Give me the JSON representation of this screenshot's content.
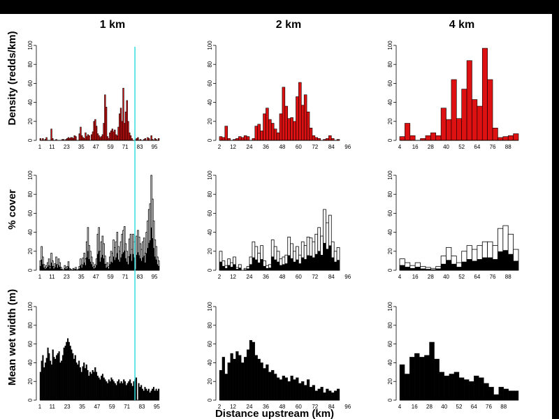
{
  "chart_data": {
    "type": "bar",
    "column_titles": [
      "1 km",
      "2 km",
      "4 km"
    ],
    "row_labels": [
      "Density (redds/km)",
      "% cover",
      "Mean wet width (m)"
    ],
    "xlabel": "Distance upstream (km)",
    "ylim": [
      0,
      100
    ],
    "yticks": [
      0,
      20,
      40,
      60,
      80,
      100
    ],
    "xticks": {
      "1 km": [
        "1",
        "11",
        "23",
        "35",
        "47",
        "59",
        "71",
        "83",
        "95"
      ],
      "2 km": [
        "2",
        "12",
        "24",
        "36",
        "48",
        "60",
        "72",
        "84",
        "96"
      ],
      "4 km": [
        "4",
        "16",
        "28",
        "40",
        "52",
        "64",
        "76",
        "88"
      ]
    },
    "colors": {
      "density": "#dd1111",
      "cover": "#000000",
      "width": "#000000",
      "marker_line": "#33dddd"
    },
    "marker_line_x_km": 79,
    "panels": [
      {
        "row": "density",
        "column": "1 km",
        "x_start": 1,
        "bin_km": 1,
        "values": [
          2,
          0,
          2,
          0,
          1,
          3,
          0,
          0,
          0,
          12,
          2,
          0,
          0,
          1,
          0,
          0,
          0,
          0,
          1,
          1,
          0,
          1,
          2,
          3,
          2,
          3,
          3,
          2,
          5,
          4,
          0,
          0,
          7,
          14,
          5,
          3,
          2,
          8,
          4,
          6,
          5,
          0,
          6,
          9,
          20,
          22,
          15,
          7,
          5,
          3,
          4,
          6,
          18,
          48,
          35,
          4,
          2,
          8,
          10,
          12,
          9,
          11,
          6,
          5,
          14,
          28,
          34,
          20,
          55,
          18,
          30,
          42,
          20,
          8,
          5,
          2,
          0,
          0,
          1,
          2,
          3,
          0,
          1,
          0,
          0,
          1,
          2,
          0,
          3,
          2,
          0,
          5,
          1,
          0,
          2,
          1,
          0,
          2
        ]
      },
      {
        "row": "density",
        "column": "2 km",
        "x_start": 2,
        "bin_km": 2,
        "values": [
          4,
          3,
          15,
          2,
          0,
          1,
          2,
          4,
          3,
          5,
          4,
          0,
          2,
          15,
          17,
          10,
          28,
          34,
          22,
          18,
          12,
          8,
          28,
          56,
          36,
          23,
          24,
          20,
          46,
          61,
          37,
          48,
          30,
          13,
          5,
          3,
          2,
          0,
          1,
          2,
          5,
          2,
          0,
          1
        ]
      },
      {
        "row": "density",
        "column": "4 km",
        "x_start": 4,
        "bin_km": 4,
        "values": [
          4,
          18,
          5,
          0,
          2,
          5,
          8,
          5,
          34,
          22,
          64,
          23,
          54,
          84,
          43,
          36,
          97,
          64,
          13,
          3,
          4,
          5,
          7
        ]
      },
      {
        "row": "cover",
        "column": "1 km",
        "x_start": 1,
        "bin_km": 1,
        "values": [
          10,
          25,
          14,
          6,
          3,
          5,
          8,
          12,
          4,
          18,
          10,
          4,
          7,
          14,
          6,
          12,
          8,
          3,
          1,
          0,
          5,
          3,
          4,
          9,
          2,
          1,
          0,
          2,
          1,
          3,
          0,
          1,
          4,
          12,
          6,
          13,
          18,
          12,
          30,
          45,
          26,
          20,
          14,
          8,
          4,
          6,
          12,
          38,
          45,
          20,
          30,
          36,
          28,
          15,
          6,
          8,
          4,
          14,
          20,
          18,
          32,
          24,
          30,
          40,
          25,
          20,
          30,
          38,
          42,
          46,
          28,
          20,
          14,
          33,
          38,
          22,
          38,
          30,
          1,
          36,
          42,
          35,
          28,
          22,
          30,
          34,
          18,
          40,
          52,
          64,
          70,
          100,
          75,
          52,
          32,
          25,
          14,
          10
        ]
      },
      {
        "row": "cover",
        "column": "2 km",
        "x_start": 2,
        "bin_km": 2,
        "values": [
          20,
          10,
          5,
          12,
          8,
          14,
          3,
          6,
          0,
          2,
          4,
          14,
          30,
          25,
          18,
          26,
          10,
          5,
          6,
          32,
          25,
          20,
          12,
          14,
          16,
          35,
          28,
          20,
          25,
          16,
          30,
          26,
          35,
          34,
          30,
          38,
          45,
          36,
          64,
          50,
          58,
          30,
          20,
          24
        ]
      },
      {
        "row": "cover",
        "column": "4 km",
        "x_start": 4,
        "bin_km": 4,
        "values": [
          12,
          8,
          5,
          8,
          4,
          3,
          2,
          4,
          15,
          24,
          15,
          8,
          20,
          26,
          22,
          26,
          30,
          30,
          26,
          44,
          47,
          38,
          22
        ]
      },
      {
        "row": "width",
        "column": "1 km",
        "x_start": 1,
        "bin_km": 1,
        "values": [
          30,
          42,
          48,
          35,
          40,
          45,
          56,
          50,
          42,
          38,
          54,
          46,
          44,
          48,
          50,
          52,
          40,
          42,
          48,
          56,
          58,
          62,
          66,
          62,
          58,
          54,
          50,
          44,
          48,
          40,
          38,
          42,
          35,
          30,
          36,
          40,
          34,
          38,
          32,
          26,
          30,
          28,
          32,
          30,
          35,
          30,
          26,
          24,
          22,
          26,
          28,
          24,
          22,
          20,
          18,
          22,
          20,
          24,
          22,
          20,
          18,
          16,
          20,
          22,
          18,
          20,
          18,
          22,
          20,
          16,
          18,
          20,
          22,
          18,
          15,
          20,
          22,
          24,
          0,
          18,
          14,
          16,
          12,
          10,
          14,
          12,
          10,
          12,
          8,
          10,
          12,
          14,
          10,
          12,
          10,
          12
        ]
      },
      {
        "row": "width",
        "column": "2 km",
        "x_start": 2,
        "bin_km": 2,
        "values": [
          32,
          46,
          28,
          40,
          50,
          44,
          52,
          48,
          40,
          46,
          54,
          64,
          62,
          48,
          44,
          40,
          34,
          38,
          30,
          32,
          28,
          24,
          22,
          26,
          24,
          20,
          26,
          22,
          24,
          18,
          20,
          16,
          22,
          14,
          16,
          10,
          12,
          14,
          8,
          12,
          10,
          8,
          10,
          12
        ]
      },
      {
        "row": "width",
        "column": "4 km",
        "x_start": 4,
        "bin_km": 4,
        "values": [
          38,
          28,
          46,
          50,
          46,
          48,
          62,
          44,
          30,
          26,
          28,
          30,
          24,
          22,
          20,
          26,
          24,
          18,
          14,
          6,
          14,
          12,
          10,
          10
        ]
      }
    ]
  }
}
